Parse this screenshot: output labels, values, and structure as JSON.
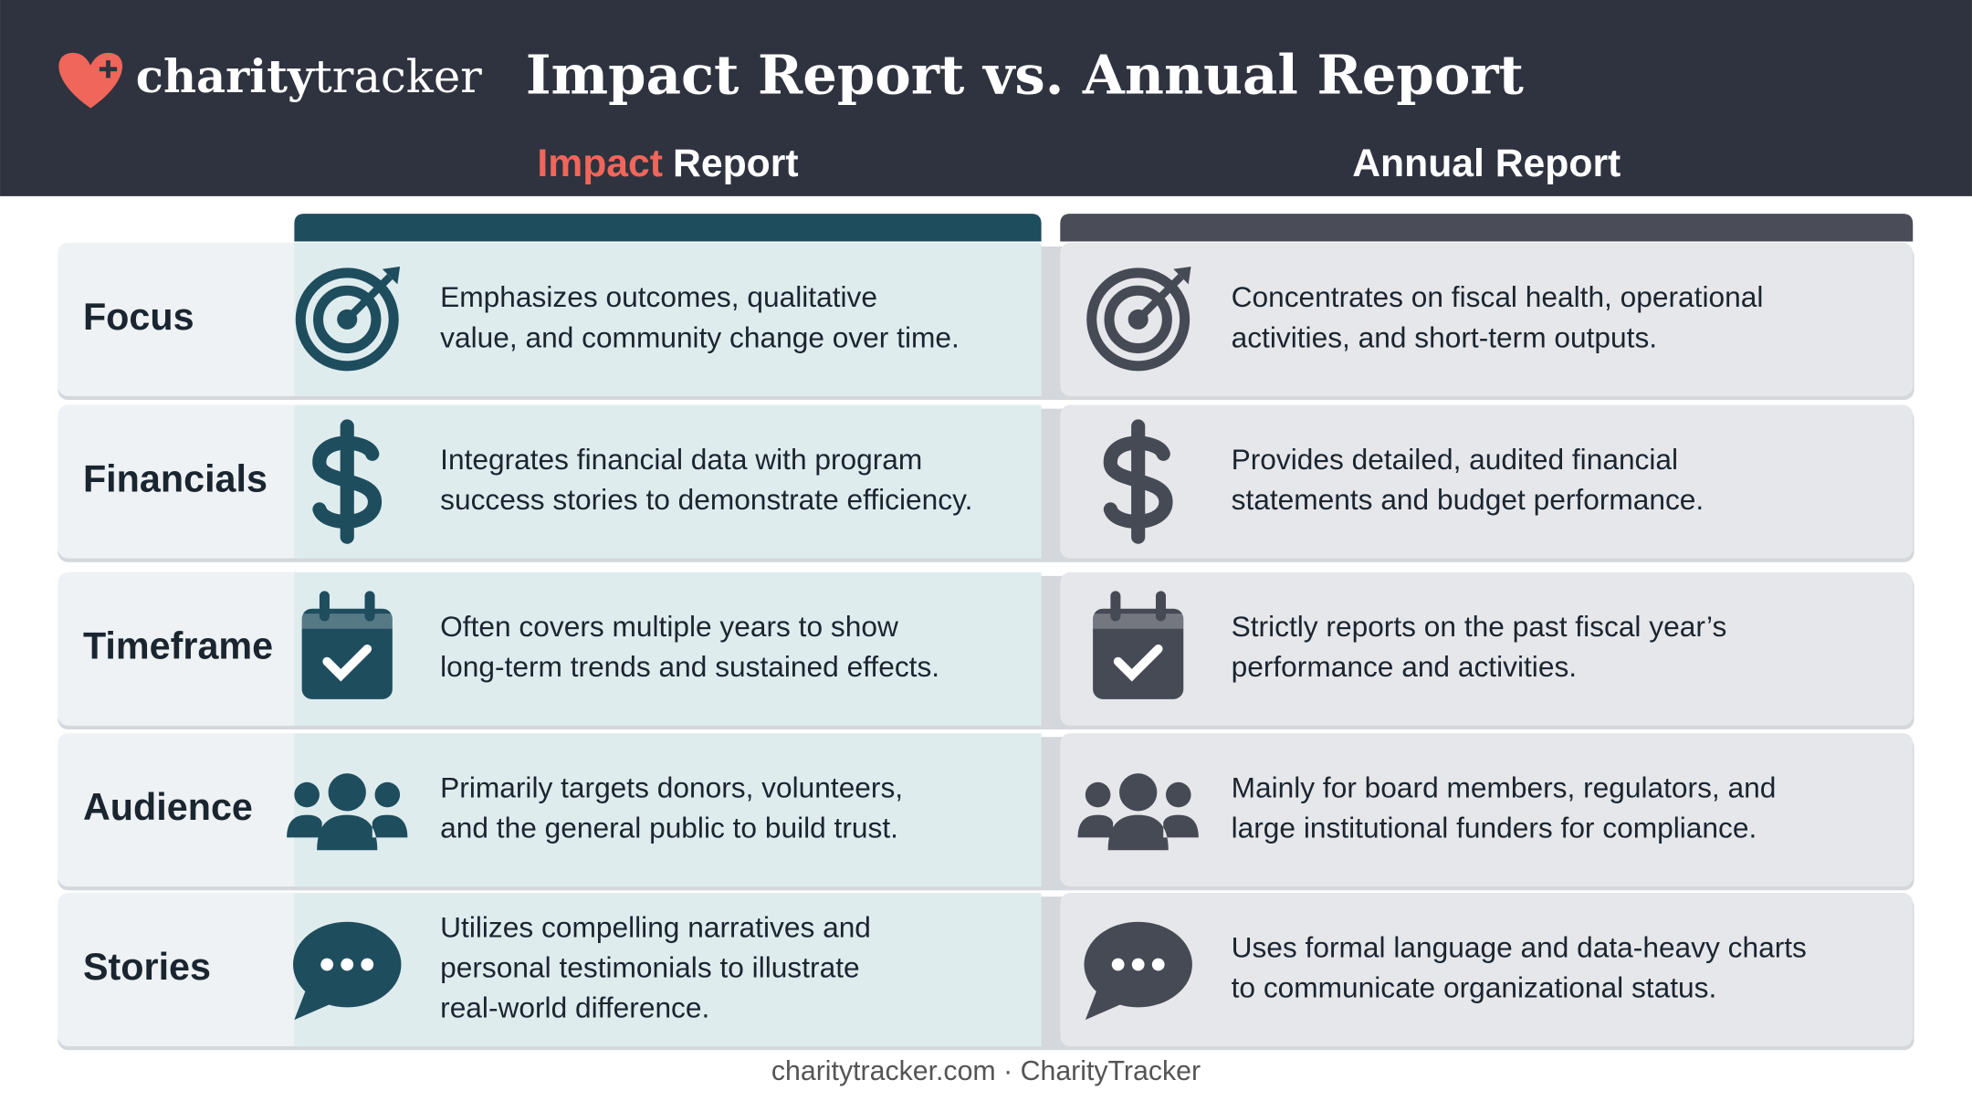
{
  "header": {
    "logo": {
      "bold": "charity",
      "light": "tracker"
    },
    "title": "Impact Report vs. Annual Report"
  },
  "columns": {
    "impact": {
      "highlight": "Impact",
      "rest": "Report"
    },
    "annual": "Annual Report"
  },
  "rows": [
    {
      "label": "Focus",
      "impact": [
        "Emphasizes outcomes, qualitative",
        "value, and community change over time."
      ],
      "annual": [
        "Concentrates on fiscal health, operational",
        "activities, and short-term outputs."
      ]
    },
    {
      "label": "Financials",
      "impact": [
        "Integrates financial data with program",
        "success stories to demonstrate efficiency."
      ],
      "annual": [
        "Provides detailed, audited financial",
        "statements and budget performance."
      ]
    },
    {
      "label": "Timeframe",
      "impact": [
        "Often covers multiple years to show",
        "long-term trends and sustained effects."
      ],
      "annual": [
        "Strictly reports on the past fiscal year’s",
        "performance and activities."
      ]
    },
    {
      "label": "Audience",
      "impact": [
        "Primarily targets donors, volunteers,",
        "and the general public to build trust."
      ],
      "annual": [
        "Mainly for board members, regulators, and",
        "large institutional funders for compliance."
      ]
    },
    {
      "label": "Stories",
      "impact": [
        "Utilizes compelling narratives and",
        "personal testimonials to illustrate",
        "real-world difference."
      ],
      "annual": [
        "Uses formal language and data-heavy charts",
        "to communicate organizational status."
      ]
    }
  ],
  "footer": "charitytracker.com · CharityTracker"
}
